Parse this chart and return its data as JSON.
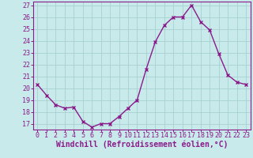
{
  "hours": [
    0,
    1,
    2,
    3,
    4,
    5,
    6,
    7,
    8,
    9,
    10,
    11,
    12,
    13,
    14,
    15,
    16,
    17,
    18,
    19,
    20,
    21,
    22,
    23
  ],
  "values": [
    20.3,
    19.4,
    18.6,
    18.3,
    18.4,
    17.2,
    16.7,
    17.0,
    17.0,
    17.6,
    18.3,
    19.0,
    21.6,
    23.9,
    25.3,
    26.0,
    26.0,
    27.0,
    25.6,
    24.9,
    22.9,
    21.1,
    20.5,
    20.3
  ],
  "line_color": "#8b1a8b",
  "marker": "x",
  "bg_color": "#c8eaea",
  "grid_color": "#a8d0d0",
  "xlabel": "Windchill (Refroidissement éolien,°C)",
  "ylim_min": 16.5,
  "ylim_max": 27.3,
  "yticks": [
    17,
    18,
    19,
    20,
    21,
    22,
    23,
    24,
    25,
    26,
    27
  ],
  "xticks": [
    0,
    1,
    2,
    3,
    4,
    5,
    6,
    7,
    8,
    9,
    10,
    11,
    12,
    13,
    14,
    15,
    16,
    17,
    18,
    19,
    20,
    21,
    22,
    23
  ],
  "tick_label_fontsize": 6.0,
  "xlabel_fontsize": 7.0,
  "line_width": 1.0,
  "marker_size": 3.5,
  "marker_edge_width": 1.0
}
